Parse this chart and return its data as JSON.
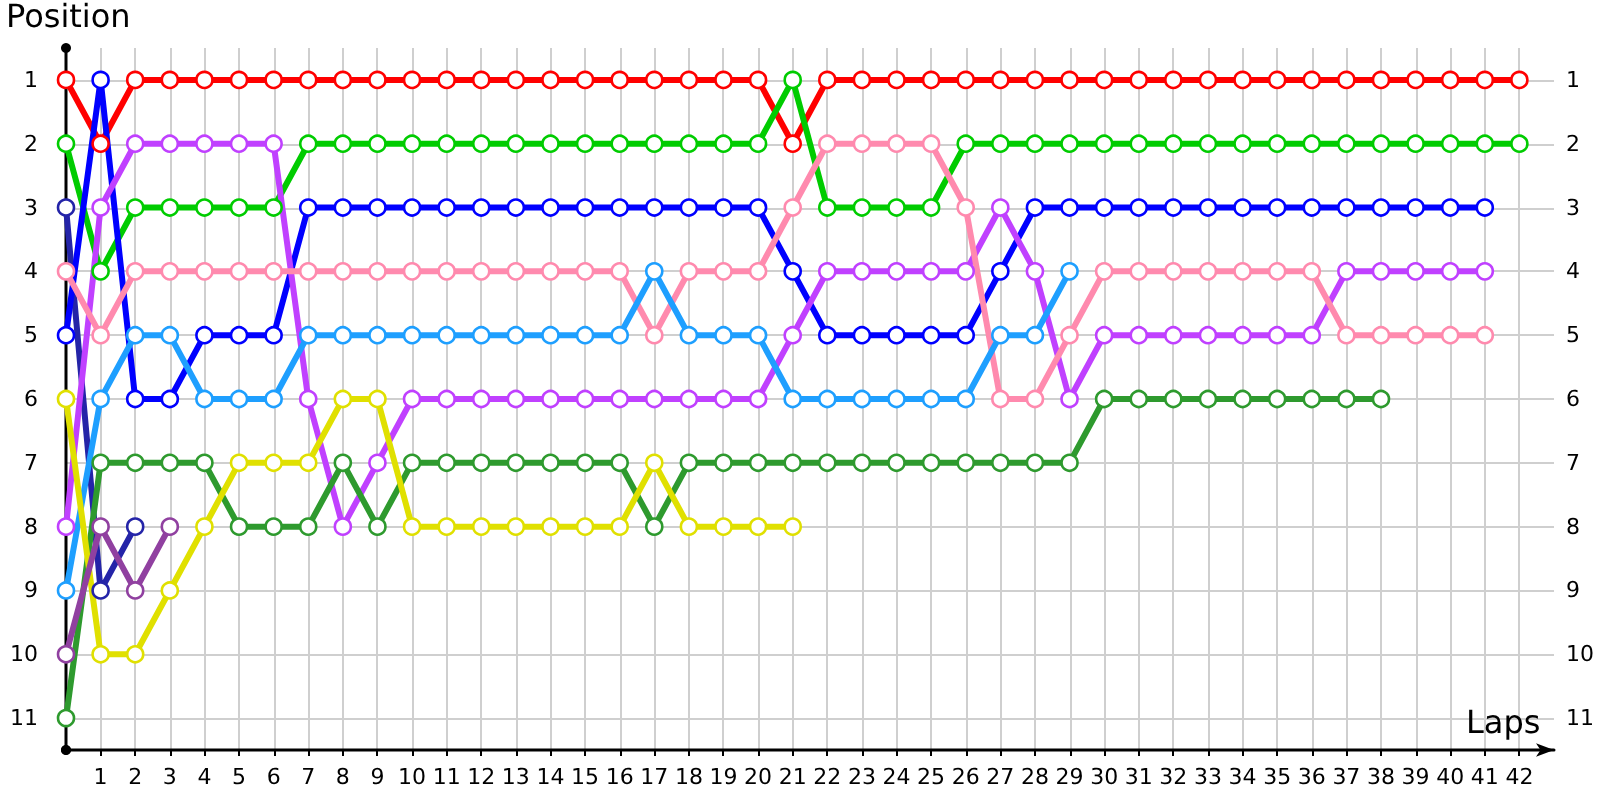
{
  "chart_data": {
    "type": "line",
    "xlabel": "Laps",
    "ylabel": "Position",
    "marker": "circle",
    "line_style": "solid",
    "grid": true,
    "xlim": [
      0,
      43
    ],
    "xticks": [
      1,
      2,
      3,
      4,
      5,
      6,
      7,
      8,
      9,
      10,
      11,
      12,
      13,
      14,
      15,
      16,
      17,
      18,
      19,
      20,
      21,
      22,
      23,
      24,
      25,
      26,
      27,
      28,
      29,
      30,
      31,
      32,
      33,
      34,
      35,
      36,
      37,
      38,
      39,
      40,
      41,
      42
    ],
    "ylim": [
      11.5,
      0.5
    ],
    "yticks": [
      1,
      2,
      3,
      4,
      5,
      6,
      7,
      8,
      9,
      10,
      11
    ],
    "y2lim": [
      11.5,
      0.5
    ],
    "y2ticks": [
      1,
      2,
      3,
      4,
      5,
      6,
      7,
      8,
      9,
      10,
      11
    ],
    "x": [
      0,
      1,
      2,
      3,
      4,
      5,
      6,
      7,
      8,
      9,
      10,
      11,
      12,
      13,
      14,
      15,
      16,
      17,
      18,
      19,
      20,
      21,
      22,
      23,
      24,
      25,
      26,
      27,
      28,
      29,
      30,
      31,
      32,
      33,
      34,
      35,
      36,
      37,
      38,
      39,
      40,
      41,
      42
    ],
    "series": [
      {
        "color": "#ff0000",
        "values": [
          1,
          2,
          1,
          1,
          1,
          1,
          1,
          1,
          1,
          1,
          1,
          1,
          1,
          1,
          1,
          1,
          1,
          1,
          1,
          1,
          1,
          2,
          1,
          1,
          1,
          1,
          1,
          1,
          1,
          1,
          1,
          1,
          1,
          1,
          1,
          1,
          1,
          1,
          1,
          1,
          1,
          1,
          1
        ]
      },
      {
        "color": "#00cc00",
        "values": [
          2,
          4,
          3,
          3,
          3,
          3,
          3,
          2,
          2,
          2,
          2,
          2,
          2,
          2,
          2,
          2,
          2,
          2,
          2,
          2,
          2,
          1,
          3,
          3,
          3,
          3,
          2,
          2,
          2,
          2,
          2,
          2,
          2,
          2,
          2,
          2,
          2,
          2,
          2,
          2,
          2,
          2,
          2
        ]
      },
      {
        "color": "#2424a8",
        "x": [
          0,
          1,
          2
        ],
        "values": [
          3,
          9,
          8
        ]
      },
      {
        "color": "#0000ff",
        "x": [
          0,
          1,
          2,
          3,
          4,
          5,
          6,
          7,
          8,
          9,
          10,
          11,
          12,
          13,
          14,
          15,
          16,
          17,
          18,
          19,
          20,
          21,
          22,
          23,
          24,
          25,
          26,
          27,
          28,
          29,
          30,
          31,
          32,
          33,
          34,
          35,
          36,
          37,
          38,
          39,
          40,
          41
        ],
        "values": [
          5,
          1,
          6,
          6,
          5,
          5,
          5,
          3,
          3,
          3,
          3,
          3,
          3,
          3,
          3,
          3,
          3,
          3,
          3,
          3,
          3,
          4,
          5,
          5,
          5,
          5,
          5,
          4,
          3,
          3,
          3,
          3,
          3,
          3,
          3,
          3,
          3,
          3,
          3,
          3,
          3,
          3
        ]
      },
      {
        "color": "#c040ff",
        "x": [
          0,
          1,
          2,
          3,
          4,
          5,
          6,
          7,
          8,
          9,
          10,
          11,
          12,
          13,
          14,
          15,
          16,
          17,
          18,
          19,
          20,
          21,
          22,
          23,
          24,
          25,
          26,
          27,
          28,
          29,
          30,
          31,
          32,
          33,
          34,
          35,
          36,
          37,
          38,
          39,
          40,
          41
        ],
        "values": [
          8,
          3,
          2,
          2,
          2,
          2,
          2,
          6,
          8,
          7,
          6,
          6,
          6,
          6,
          6,
          6,
          6,
          6,
          6,
          6,
          6,
          5,
          4,
          4,
          4,
          4,
          4,
          3,
          4,
          6,
          5,
          5,
          5,
          5,
          5,
          5,
          5,
          4,
          4,
          4,
          4,
          4
        ]
      },
      {
        "color": "#ff8aae",
        "x": [
          0,
          1,
          2,
          3,
          4,
          5,
          6,
          7,
          8,
          9,
          10,
          11,
          12,
          13,
          14,
          15,
          16,
          17,
          18,
          19,
          20,
          21,
          22,
          23,
          24,
          25,
          26,
          27,
          28,
          29,
          30,
          31,
          32,
          33,
          34,
          35,
          36,
          37,
          38,
          39,
          40,
          41
        ],
        "values": [
          4,
          5,
          4,
          4,
          4,
          4,
          4,
          4,
          4,
          4,
          4,
          4,
          4,
          4,
          4,
          4,
          4,
          5,
          4,
          4,
          4,
          3,
          2,
          2,
          2,
          2,
          3,
          6,
          6,
          5,
          4,
          4,
          4,
          4,
          4,
          4,
          4,
          5,
          5,
          5,
          5,
          5
        ]
      },
      {
        "color": "#1e9fff",
        "x": [
          0,
          1,
          2,
          3,
          4,
          5,
          6,
          7,
          8,
          9,
          10,
          11,
          12,
          13,
          14,
          15,
          16,
          17,
          18,
          19,
          20,
          21,
          22,
          23,
          24,
          25,
          26,
          27,
          28,
          29
        ],
        "values": [
          9,
          6,
          5,
          5,
          6,
          6,
          6,
          5,
          5,
          5,
          5,
          5,
          5,
          5,
          5,
          5,
          5,
          4,
          5,
          5,
          5,
          6,
          6,
          6,
          6,
          6,
          6,
          5,
          5,
          4
        ]
      },
      {
        "color": "#2e9a2e",
        "x": [
          0,
          1,
          2,
          3,
          4,
          5,
          6,
          7,
          8,
          9,
          10,
          11,
          12,
          13,
          14,
          15,
          16,
          17,
          18,
          19,
          20,
          21,
          22,
          23,
          24,
          25,
          26,
          27,
          28,
          29,
          30,
          31,
          32,
          33,
          34,
          35,
          36,
          37,
          38
        ],
        "values": [
          11,
          7,
          7,
          7,
          7,
          8,
          8,
          8,
          7,
          8,
          7,
          7,
          7,
          7,
          7,
          7,
          7,
          8,
          7,
          7,
          7,
          7,
          7,
          7,
          7,
          7,
          7,
          7,
          7,
          7,
          6,
          6,
          6,
          6,
          6,
          6,
          6,
          6,
          6
        ]
      },
      {
        "color": "#e0e000",
        "x": [
          0,
          1,
          2,
          3,
          4,
          5,
          6,
          7,
          8,
          9,
          10,
          11,
          12,
          13,
          14,
          15,
          16,
          17,
          18,
          19,
          20,
          21
        ],
        "values": [
          6,
          10,
          10,
          9,
          8,
          7,
          7,
          7,
          6,
          6,
          8,
          8,
          8,
          8,
          8,
          8,
          8,
          7,
          8,
          8,
          8,
          8
        ]
      },
      {
        "color": "#9040a0",
        "x": [
          0,
          1,
          2,
          3
        ],
        "values": [
          10,
          8,
          9,
          8
        ]
      }
    ]
  }
}
